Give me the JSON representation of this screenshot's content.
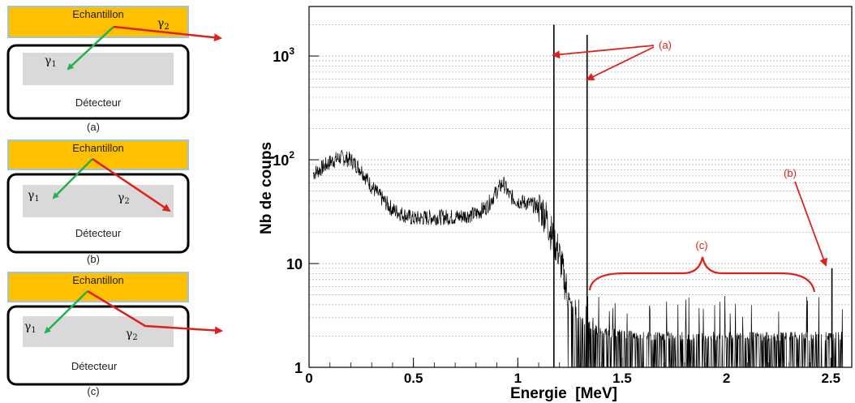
{
  "panels": [
    {
      "label": "(a)",
      "sample": "Echantillon",
      "detector": "Détecteur",
      "gamma1": "γ",
      "gamma1_sub": "1",
      "gamma2": "γ",
      "gamma2_sub": "2"
    },
    {
      "label": "(b)",
      "sample": "Echantillon",
      "detector": "Détecteur",
      "gamma1": "γ",
      "gamma1_sub": "1",
      "gamma2": "γ",
      "gamma2_sub": "2"
    },
    {
      "label": "(c)",
      "sample": "Echantillon",
      "detector": "Détecteur",
      "gamma1": "γ",
      "gamma1_sub": "1",
      "gamma2": "γ",
      "gamma2_sub": "2"
    }
  ],
  "colors": {
    "sample_fill": "#ffc000",
    "sample_border": "#9dc3e6",
    "detector_fill": "#d9d9d9",
    "gamma1_arrow": "#22b14c",
    "gamma2_arrow": "#e0201b",
    "annotation": "#e0201b",
    "spectrum": "#000000"
  },
  "chart_data": {
    "type": "line",
    "xlabel": "Energie  [MeV]",
    "ylabel": "Nb de coups",
    "xlim": [
      0,
      2.6
    ],
    "ylim": [
      1,
      3000
    ],
    "yscale": "log",
    "grid": "horizontal",
    "x_ticks": [
      {
        "value": 0,
        "label": "0"
      },
      {
        "value": 0.5,
        "label": "0.5"
      },
      {
        "value": 1,
        "label": "1"
      },
      {
        "value": 1.5,
        "label": "1.5"
      },
      {
        "value": 2,
        "label": "2"
      },
      {
        "value": 2.5,
        "label": "2.5"
      }
    ],
    "y_ticks": [
      {
        "value": 1,
        "label": "1"
      },
      {
        "value": 10,
        "label": "10"
      },
      {
        "value": 100,
        "label": "10",
        "exp": "2"
      },
      {
        "value": 1000,
        "label": "10",
        "exp": "3"
      }
    ],
    "series": [
      {
        "x": [
          0.0,
          0.05,
          0.1,
          0.15,
          0.2,
          0.25,
          0.3,
          0.35,
          0.4,
          0.5,
          0.6,
          0.7,
          0.8,
          0.85,
          0.9,
          0.93,
          0.96,
          1.0,
          1.05,
          1.1,
          1.13,
          1.16,
          1.2,
          1.23,
          1.26,
          1.3,
          1.35,
          1.4,
          1.6,
          1.8,
          2.0,
          2.2,
          2.4,
          2.55
        ],
        "y": [
          70,
          80,
          95,
          105,
          100,
          80,
          55,
          42,
          33,
          27,
          28,
          28,
          30,
          35,
          50,
          60,
          45,
          40,
          38,
          35,
          30,
          20,
          12,
          6,
          4,
          3,
          2.5,
          2.2,
          2,
          2,
          2,
          2,
          2,
          2
        ]
      }
    ],
    "peaks": [
      {
        "x": 1.173,
        "y": 2000
      },
      {
        "x": 1.332,
        "y": 1600
      },
      {
        "x": 2.505,
        "y": 9
      }
    ],
    "annotations": [
      {
        "text": "(a)"
      },
      {
        "text": "(b)"
      },
      {
        "text": "(c)"
      }
    ]
  }
}
